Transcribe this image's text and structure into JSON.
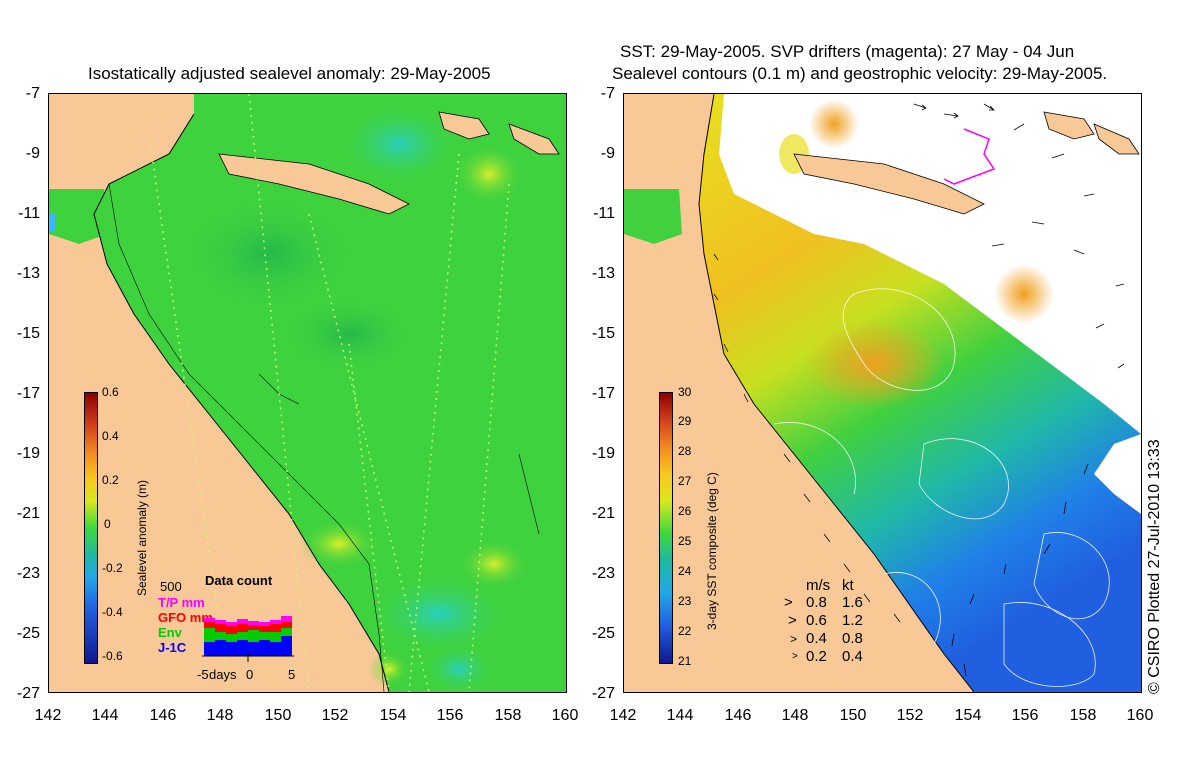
{
  "left_panel": {
    "title": "Isostatically adjusted sealevel anomaly: 29-May-2005",
    "y_ticks": [
      "-7",
      "-9",
      "-11",
      "-13",
      "-15",
      "-17",
      "-19",
      "-21",
      "-23",
      "-25",
      "-27"
    ],
    "x_ticks": [
      "142",
      "144",
      "146",
      "148",
      "150",
      "152",
      "154",
      "156",
      "158",
      "160"
    ],
    "colorbar": {
      "label": "Sealevel anomaly (m)",
      "ticks": [
        "0.6",
        "0.4",
        "0.2",
        "0",
        "-0.2",
        "-0.4",
        "-0.6"
      ]
    },
    "data_count": {
      "title": "Data count",
      "max_label": "500",
      "series": [
        {
          "label": "T/P mm",
          "color": "#ff00ff"
        },
        {
          "label": "GFO mm",
          "color": "#ff0000"
        },
        {
          "label": "Env",
          "color": "#00cc00"
        },
        {
          "label": "J-1C",
          "color": "#0000ff"
        }
      ],
      "axis_labels": {
        "start": "-5",
        "unit": "days",
        "mid": "0",
        "end": "5"
      }
    }
  },
  "right_panel": {
    "title_line1": "SST: 29-May-2005. SVP drifters (magenta): 27 May - 04 Jun",
    "title_line2": "Sealevel contours (0.1 m) and geostrophic velocity: 29-May-2005.",
    "y_ticks": [
      "-7",
      "-9",
      "-11",
      "-13",
      "-15",
      "-17",
      "-19",
      "-21",
      "-23",
      "-25",
      "-27"
    ],
    "x_ticks": [
      "142",
      "144",
      "146",
      "148",
      "150",
      "152",
      "154",
      "156",
      "158",
      "160"
    ],
    "colorbar": {
      "label": "3-day SST composite (deg C)",
      "ticks": [
        "30",
        "29",
        "28",
        "27",
        "26",
        "25",
        "24",
        "23",
        "22",
        "21"
      ]
    },
    "velocity_legend": {
      "header_ms": "m/s",
      "header_kt": "kt",
      "rows": [
        {
          "ms": "0.8",
          "kt": "1.6"
        },
        {
          "ms": "0.6",
          "kt": "1.2"
        },
        {
          "ms": "0.4",
          "kt": "0.8"
        },
        {
          "ms": "0.2",
          "kt": "0.4"
        }
      ]
    }
  },
  "credit": "© CSIRO Plotted 27-Jul-2010 13:33",
  "colors": {
    "land": "#f8c896",
    "ocean_green": "#3fd23f",
    "cloud": "#ffffff"
  }
}
